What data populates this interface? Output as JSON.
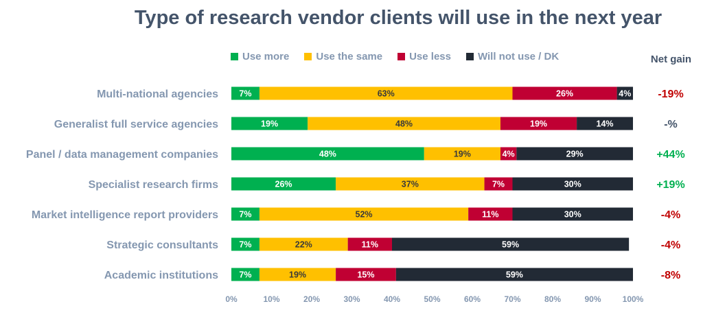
{
  "chart_data": {
    "type": "bar",
    "orientation": "horizontal",
    "stacked": true,
    "title": "Type of research vendor clients will use in the next year",
    "categories": [
      "Multi-national agencies",
      "Generalist full service agencies",
      "Panel / data management companies",
      "Specialist research firms",
      "Market intelligence report providers",
      "Strategic consultants",
      "Academic institutions"
    ],
    "series": [
      {
        "name": "Use more",
        "color": "#00B050",
        "values": [
          7,
          19,
          48,
          26,
          7,
          7,
          7
        ]
      },
      {
        "name": "Use the same",
        "color": "#FFC000",
        "values": [
          63,
          48,
          19,
          37,
          52,
          22,
          19
        ]
      },
      {
        "name": "Use less",
        "color": "#C00033",
        "values": [
          26,
          19,
          4,
          7,
          11,
          11,
          15
        ]
      },
      {
        "name": "Will not use / DK",
        "color": "#222A35",
        "values": [
          4,
          14,
          29,
          30,
          30,
          59,
          59
        ]
      }
    ],
    "x_ticks": [
      "0%",
      "10%",
      "20%",
      "30%",
      "40%",
      "50%",
      "60%",
      "70%",
      "80%",
      "90%",
      "100%"
    ],
    "xlim": [
      0,
      100
    ],
    "legend_position": "top",
    "net_gain": {
      "header": "Net gain",
      "values": [
        "-19%",
        "-%",
        "+44%",
        "+19%",
        "-4%",
        "-4%",
        "-8%"
      ],
      "positive_color": "#00B050",
      "negative_color": "#C00000",
      "neutral_color": "#44546A"
    }
  }
}
